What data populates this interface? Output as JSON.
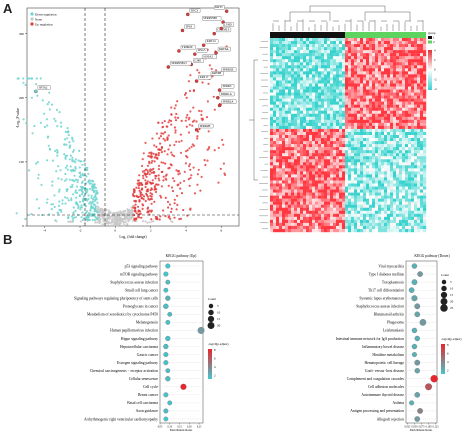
{
  "panels": {
    "a": "A",
    "b": "B"
  },
  "volcano": {
    "ylabel": "-Log₁₀P value",
    "xlabel": "Log₂ (fold change)",
    "legend": [
      "Down regulation",
      "None",
      "Up regulation"
    ],
    "yticks": [
      "300",
      "200",
      "100",
      "0"
    ],
    "xticks": [
      "-4",
      "-2",
      "0",
      "2",
      "4",
      "6"
    ],
    "colors": {
      "down": "#6fd3cf",
      "none": "#c8c8c8",
      "up": "#e23b3b"
    },
    "genes": [
      {
        "name": "DSC3",
        "x": 4.1,
        "y": 330
      },
      {
        "name": "KRT5",
        "x": 6.3,
        "y": 335
      },
      {
        "name": "SERPINB5",
        "x": 6.1,
        "y": 318
      },
      {
        "name": "CALML3",
        "x": 5.6,
        "y": 300
      },
      {
        "name": "LY6D",
        "x": 6.0,
        "y": 308
      },
      {
        "name": "TP63",
        "x": 3.8,
        "y": 305
      },
      {
        "name": "KRT14",
        "x": 5.0,
        "y": 282
      },
      {
        "name": "TRIM29",
        "x": 3.6,
        "y": 273
      },
      {
        "name": "DSG3",
        "x": 4.5,
        "y": 268
      },
      {
        "name": "KRT6A",
        "x": 5.7,
        "y": 270
      },
      {
        "name": "S100A2",
        "x": 4.8,
        "y": 258
      },
      {
        "name": "GJB5",
        "x": 4.3,
        "y": 252
      },
      {
        "name": "SERPINB13",
        "x": 3.0,
        "y": 248
      },
      {
        "name": "SPRR1B",
        "x": 5.9,
        "y": 238
      },
      {
        "name": "KRT6B",
        "x": 5.3,
        "y": 232
      },
      {
        "name": "KRT17",
        "x": 4.6,
        "y": 226
      },
      {
        "name": "SPRR3",
        "x": 5.9,
        "y": 212
      },
      {
        "name": "SPRR1A",
        "x": 5.8,
        "y": 200
      },
      {
        "name": "SPRR2A",
        "x": 5.9,
        "y": 188
      },
      {
        "name": "SPRR2B",
        "x": 4.6,
        "y": 150
      },
      {
        "name": "SFTA2",
        "x": -4.5,
        "y": 210
      }
    ]
  },
  "heatmap": {
    "legend": {
      "title": "group",
      "items": [
        "1",
        "2"
      ]
    },
    "scale": [
      "4",
      "2",
      "0",
      "-2",
      "-4"
    ]
  },
  "kegg_up": {
    "title": "KEGG pathway (Up)",
    "xlabel": "Enrichment Ratio",
    "xticks": [
      "0.05",
      "0.10",
      "0.15",
      "0.20",
      "0.25"
    ],
    "count_title": "Count",
    "count_items": [
      "5",
      "10",
      "15",
      "20"
    ],
    "padj_title": "-log10(p.adjust)",
    "padj_ticks": [
      "8",
      "6",
      "4",
      "2"
    ],
    "pathways": [
      "p53 signaling pathway",
      "mTOR signaling pathway",
      "Staphylococcus aureus infection",
      "Small cell lung cancer",
      "Signaling pathways regulating pluripotency of stem cells",
      "Proteoglycans in cancer",
      "Metabolism of xenobiotics by cytochrome P450",
      "Melanogenesis",
      "Human papillomavirus infection",
      "Hippo signaling pathway",
      "Hepatocellular carcinoma",
      "Gastric cancer",
      "Estrogen signaling pathway",
      "Chemical carcinogenesis − receptor activation",
      "Cellular senescence",
      "Cell cycle",
      "Breast cancer",
      "Basal cell carcinoma",
      "Axon guidance",
      "Arrhythmogenic right ventricular cardiomyopathy"
    ]
  },
  "kegg_down": {
    "title": "KEGG pathway (Down)",
    "xlabel": "Enrichment Ratio",
    "xticks": [
      "0.025",
      "0.050",
      "0.075",
      "0.100",
      "0.125"
    ],
    "count_title": "Count",
    "count_items": [
      "5",
      "10",
      "15",
      "20",
      "25"
    ],
    "padj_title": "-log10(p.adjust)",
    "padj_ticks": [
      "8",
      "6",
      "4",
      "2"
    ],
    "pathways": [
      "Viral myocarditis",
      "Type I diabetes mellitus",
      "Toxoplasmosis",
      "Th17 cell differentiation",
      "Systemic lupus erythematosus",
      "Staphylococcus aureus infection",
      "Rheumatoid arthritis",
      "Phagosome",
      "Leishmaniasis",
      "Intestinal immune network for IgA production",
      "Inflammatory bowel disease",
      "Histidine metabolism",
      "Hematopoietic cell lineage",
      "Graft−versus−host disease",
      "Complement and coagulation cascades",
      "Cell adhesion molecules",
      "Autoimmune thyroid disease",
      "Asthma",
      "Antigen processing and presentation",
      "Allograft rejection"
    ]
  },
  "chart_data": [
    {
      "type": "scatter",
      "name": "volcano",
      "xlabel": "Log₂ (fold change)",
      "ylabel": "-Log₁₀P value",
      "xlim": [
        -5,
        7
      ],
      "ylim": [
        0,
        340
      ],
      "series": [
        {
          "name": "Down regulation"
        },
        {
          "name": "None"
        },
        {
          "name": "Up regulation"
        }
      ]
    },
    {
      "type": "heatmap",
      "name": "clustered heatmap",
      "groups": [
        "1",
        "2"
      ],
      "color_range": [
        -4,
        4
      ]
    },
    {
      "type": "scatter",
      "name": "kegg-up",
      "title": "KEGG pathway (Up)",
      "xlabel": "Enrichment Ratio",
      "categories": [
        "p53 signaling pathway",
        "mTOR signaling pathway",
        "Staphylococcus aureus infection",
        "Small cell lung cancer",
        "Signaling pathways regulating pluripotency of stem cells",
        "Proteoglycans in cancer",
        "Metabolism of xenobiotics by cytochrome P450",
        "Melanogenesis",
        "Human papillomavirus infection",
        "Hippo signaling pathway",
        "Hepatocellular carcinoma",
        "Gastric cancer",
        "Estrogen signaling pathway",
        "Chemical carcinogenesis − receptor activation",
        "Cellular senescence",
        "Cell cycle",
        "Breast cancer",
        "Basal cell carcinoma",
        "Axon guidance",
        "Arrhythmogenic right ventricular cardiomyopathy"
      ],
      "x": [
        0.09,
        0.08,
        0.09,
        0.08,
        0.09,
        0.08,
        0.1,
        0.09,
        0.26,
        0.09,
        0.08,
        0.08,
        0.08,
        0.09,
        0.09,
        0.17,
        0.08,
        0.1,
        0.08,
        0.08
      ],
      "count": [
        6,
        6,
        5,
        5,
        7,
        8,
        5,
        5,
        18,
        7,
        7,
        6,
        6,
        5,
        7,
        12,
        6,
        5,
        6,
        5
      ],
      "padj": [
        1,
        1,
        1.5,
        1.2,
        2,
        1.5,
        1.5,
        1.2,
        3,
        1.2,
        1.5,
        1.2,
        1.2,
        1.5,
        1.5,
        8,
        1.2,
        1.2,
        1.5,
        1
      ],
      "xlim": [
        0.05,
        0.27
      ]
    },
    {
      "type": "scatter",
      "name": "kegg-down",
      "title": "KEGG pathway (Down)",
      "xlabel": "Enrichment Ratio",
      "categories": [
        "Viral myocarditis",
        "Type I diabetes mellitus",
        "Toxoplasmosis",
        "Th17 cell differentiation",
        "Systemic lupus erythematosus",
        "Staphylococcus aureus infection",
        "Rheumatoid arthritis",
        "Phagosome",
        "Leishmaniasis",
        "Intestinal immune network for IgA production",
        "Inflammatory bowel disease",
        "Histidine metabolism",
        "Hematopoietic cell lineage",
        "Graft−versus−host disease",
        "Complement and coagulation cascades",
        "Cell adhesion molecules",
        "Autoimmune thyroid disease",
        "Asthma",
        "Antigen processing and presentation",
        "Allograft rejection"
      ],
      "x": [
        0.05,
        0.07,
        0.05,
        0.04,
        0.05,
        0.06,
        0.06,
        0.08,
        0.05,
        0.06,
        0.05,
        0.05,
        0.06,
        0.06,
        0.12,
        0.1,
        0.06,
        0.04,
        0.07,
        0.06
      ],
      "count": [
        8,
        9,
        10,
        9,
        12,
        10,
        9,
        16,
        8,
        8,
        8,
        6,
        10,
        8,
        22,
        18,
        9,
        6,
        10,
        9
      ],
      "padj": [
        2,
        3,
        2,
        2,
        2.5,
        3,
        2.5,
        3,
        2,
        2,
        2,
        2,
        3,
        2.5,
        8,
        6,
        2.5,
        2,
        4,
        3
      ],
      "xlim": [
        0.02,
        0.13
      ]
    }
  ]
}
